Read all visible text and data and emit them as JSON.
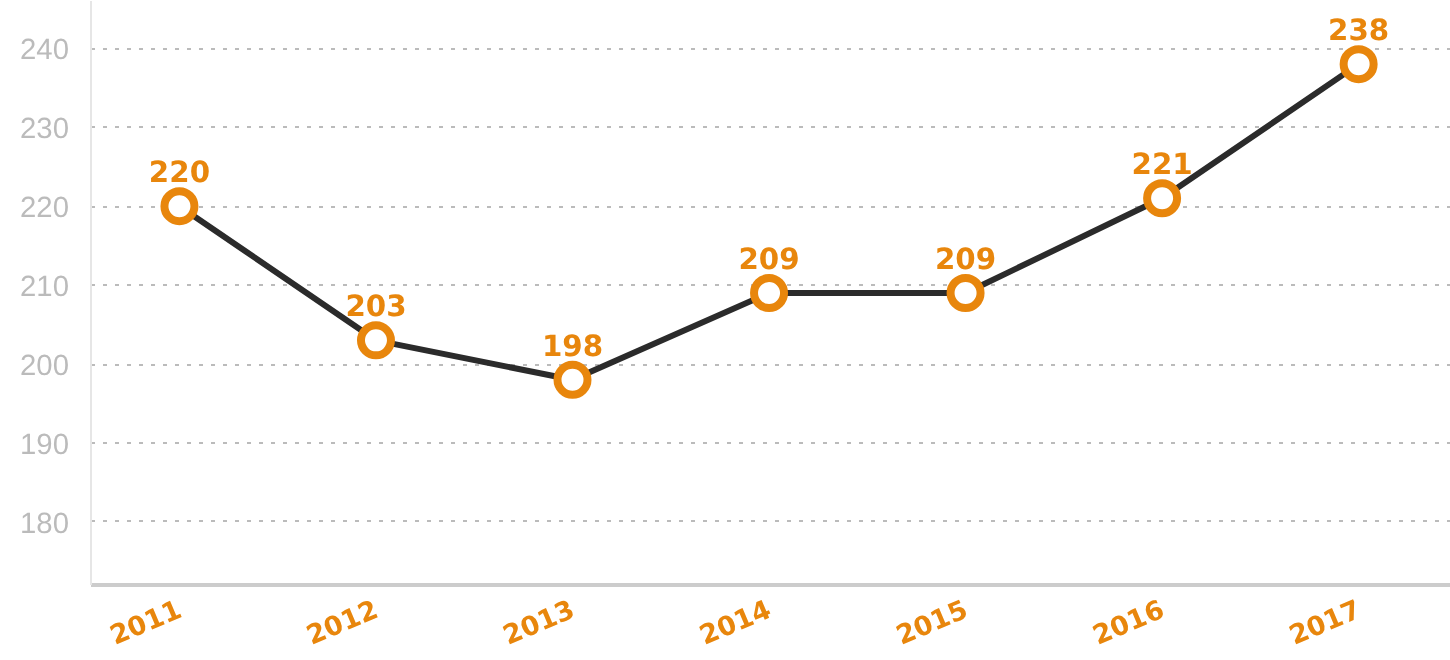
{
  "chart_data": {
    "type": "line",
    "categories": [
      "2011",
      "2012",
      "2013",
      "2014",
      "2015",
      "2016",
      "2017"
    ],
    "values": [
      220,
      203,
      198,
      209,
      209,
      221,
      238
    ],
    "color": "#e8860c",
    "ylim": [
      172,
      246
    ],
    "yticks": [
      180,
      190,
      200,
      210,
      220,
      230,
      240
    ],
    "grid": "y",
    "marker": "circle",
    "line_style": "solid",
    "data_labels": true
  }
}
